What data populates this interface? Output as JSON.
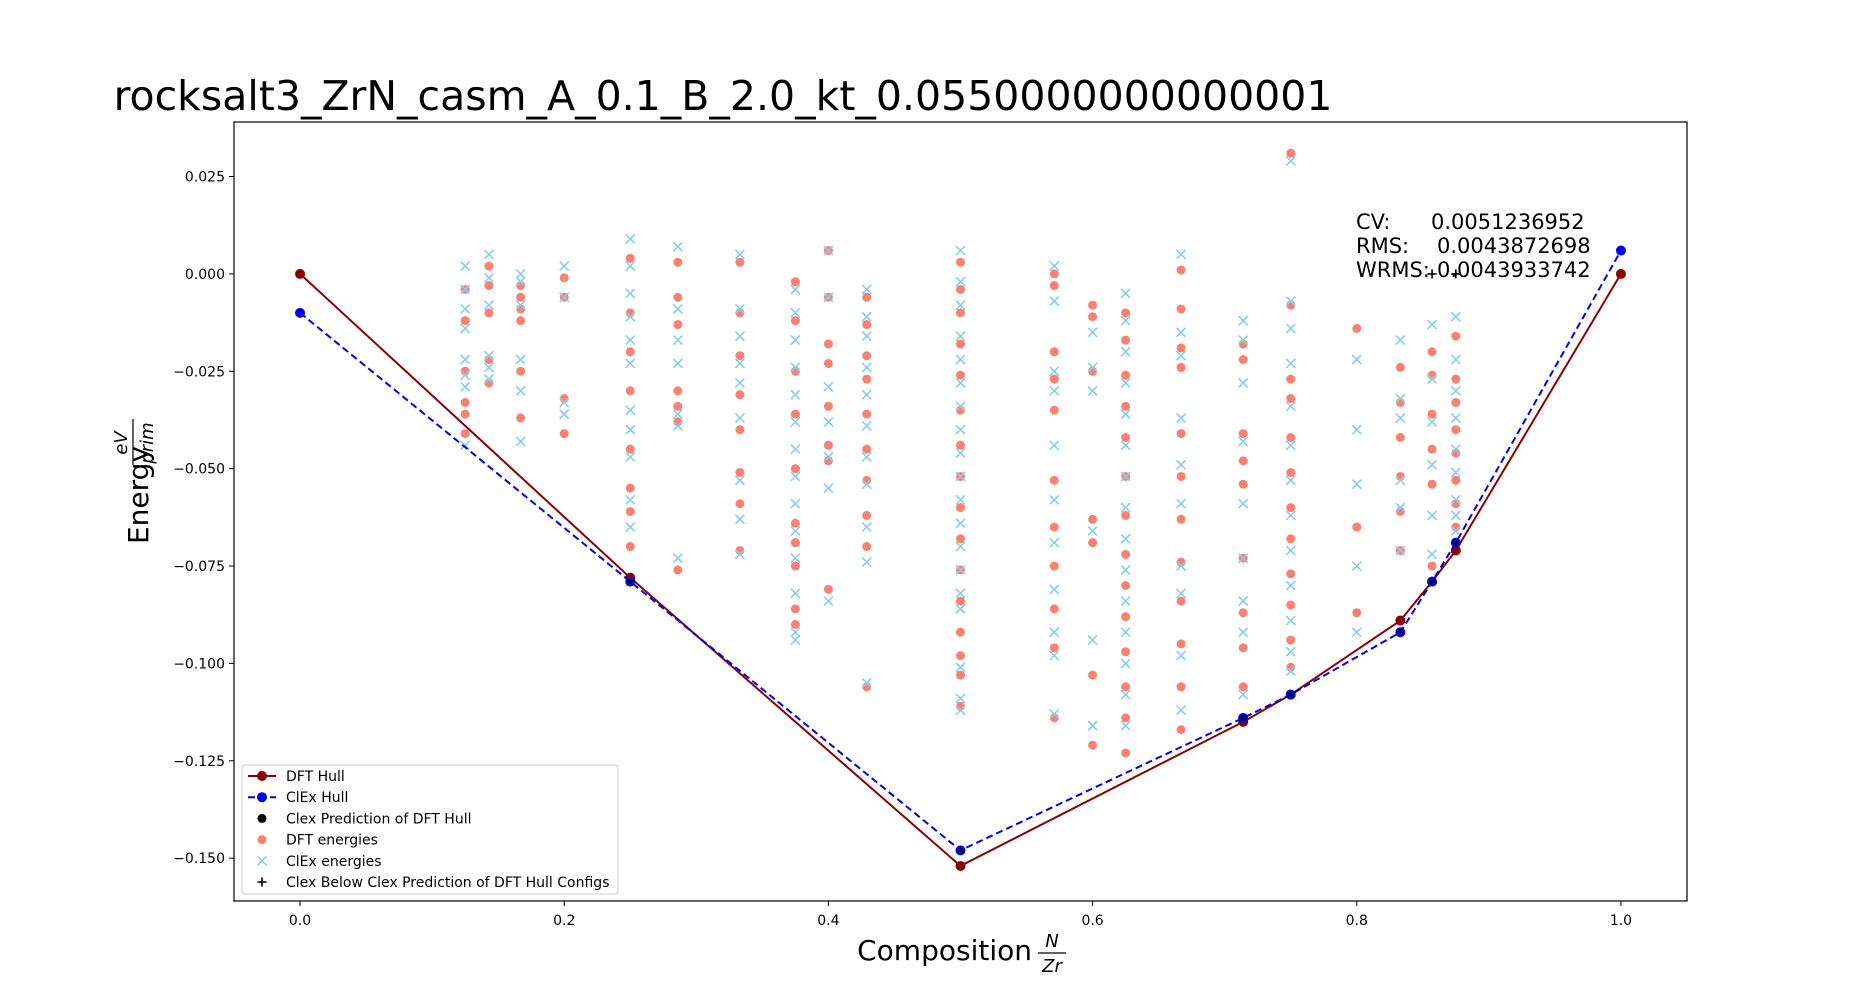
{
  "chart_data": {
    "type": "scatter",
    "title": "rocksalt3_ZrN_casm_A_0.1_B_2.0_kt_0.0550000000000001",
    "xlabel": {
      "main": "Composition",
      "num": "N",
      "den": "Zr"
    },
    "ylabel": {
      "main": "Energy",
      "num": "eV",
      "den": "prim"
    },
    "xlim": [
      -0.05,
      1.05
    ],
    "ylim": [
      -0.161,
      0.039
    ],
    "xticks": [
      0.0,
      0.2,
      0.4,
      0.6,
      0.8,
      1.0
    ],
    "xtick_labels": [
      "0.0",
      "0.2",
      "0.4",
      "0.6",
      "0.8",
      "1.0"
    ],
    "yticks": [
      -0.15,
      -0.125,
      -0.1,
      -0.075,
      -0.05,
      -0.025,
      0.0,
      0.025
    ],
    "ytick_labels": [
      "−0.150",
      "−0.125",
      "−0.100",
      "−0.075",
      "−0.050",
      "−0.025",
      "0.000",
      "0.025"
    ],
    "grid": false,
    "legend_position": "lower-left",
    "stats": {
      "cv_label": "CV:",
      "cv_value": "0.0051236952",
      "rms_label": "RMS:",
      "rms_value": "0.0043872698",
      "wrms_label": "WRMS:",
      "wrms_value": "0.0043933742"
    },
    "dft_hull": {
      "name": "DFT Hull",
      "color": "#8b0000",
      "x": [
        0.0,
        0.25,
        0.5,
        0.714,
        0.75,
        0.833,
        0.857,
        0.875,
        1.0
      ],
      "y": [
        0.0,
        -0.078,
        -0.152,
        -0.115,
        -0.108,
        -0.089,
        -0.079,
        -0.071,
        0.0
      ]
    },
    "clex_hull": {
      "name": "ClEx Hull",
      "color": "#0000ee",
      "x": [
        0.0,
        0.25,
        0.5,
        0.714,
        0.75,
        0.833,
        0.857,
        0.875,
        1.0
      ],
      "y": [
        -0.01,
        -0.079,
        -0.148,
        -0.114,
        -0.108,
        -0.092,
        -0.079,
        -0.069,
        0.006
      ]
    },
    "clex_prediction": {
      "name": "Clex Prediction of DFT Hull",
      "color": "#000000",
      "x": [
        0.25,
        0.5,
        0.714,
        0.75,
        0.833,
        0.857,
        0.875
      ],
      "y": [
        -0.079,
        -0.148,
        -0.114,
        -0.108,
        -0.092,
        -0.079,
        -0.069
      ]
    },
    "dft_energies": {
      "name": "DFT energies",
      "color": "#fa8072",
      "columns": [
        {
          "x": 0.125,
          "y": [
            -0.004,
            -0.012,
            -0.025,
            -0.033,
            -0.036,
            -0.041
          ]
        },
        {
          "x": 0.143,
          "y": [
            0.002,
            -0.003,
            -0.01,
            -0.022,
            -0.028
          ]
        },
        {
          "x": 0.167,
          "y": [
            -0.003,
            -0.006,
            -0.009,
            -0.012,
            -0.025,
            -0.037
          ]
        },
        {
          "x": 0.2,
          "y": [
            -0.001,
            -0.006,
            -0.032,
            -0.041
          ]
        },
        {
          "x": 0.25,
          "y": [
            0.004,
            -0.01,
            -0.02,
            -0.03,
            -0.045,
            -0.055,
            -0.061,
            -0.07
          ]
        },
        {
          "x": 0.286,
          "y": [
            0.003,
            -0.006,
            -0.013,
            -0.03,
            -0.034,
            -0.038,
            -0.076
          ]
        },
        {
          "x": 0.333,
          "y": [
            0.003,
            -0.01,
            -0.021,
            -0.031,
            -0.04,
            -0.051,
            -0.059,
            -0.071
          ]
        },
        {
          "x": 0.375,
          "y": [
            -0.002,
            -0.012,
            -0.025,
            -0.036,
            -0.05,
            -0.064,
            -0.069,
            -0.075,
            -0.086,
            -0.09
          ]
        },
        {
          "x": 0.4,
          "y": [
            0.006,
            -0.006,
            -0.018,
            -0.023,
            -0.034,
            -0.044,
            -0.048,
            -0.081
          ]
        },
        {
          "x": 0.429,
          "y": [
            -0.006,
            -0.013,
            -0.021,
            -0.027,
            -0.036,
            -0.045,
            -0.053,
            -0.062,
            -0.07,
            -0.106
          ]
        },
        {
          "x": 0.5,
          "y": [
            0.003,
            -0.004,
            -0.01,
            -0.018,
            -0.026,
            -0.035,
            -0.044,
            -0.052,
            -0.06,
            -0.068,
            -0.076,
            -0.084,
            -0.092,
            -0.098,
            -0.103,
            -0.111
          ]
        },
        {
          "x": 0.571,
          "y": [
            0.0,
            -0.003,
            -0.02,
            -0.027,
            -0.035,
            -0.053,
            -0.065,
            -0.075,
            -0.086,
            -0.096,
            -0.114
          ]
        },
        {
          "x": 0.6,
          "y": [
            -0.008,
            -0.011,
            -0.025,
            -0.063,
            -0.069,
            -0.103,
            -0.121
          ]
        },
        {
          "x": 0.625,
          "y": [
            -0.01,
            -0.017,
            -0.026,
            -0.034,
            -0.042,
            -0.052,
            -0.062,
            -0.072,
            -0.08,
            -0.088,
            -0.097,
            -0.106,
            -0.114,
            -0.123
          ]
        },
        {
          "x": 0.667,
          "y": [
            0.001,
            -0.009,
            -0.019,
            -0.024,
            -0.041,
            -0.052,
            -0.063,
            -0.074,
            -0.084,
            -0.095,
            -0.106,
            -0.117
          ]
        },
        {
          "x": 0.714,
          "y": [
            -0.018,
            -0.022,
            -0.041,
            -0.048,
            -0.054,
            -0.073,
            -0.087,
            -0.096,
            -0.106
          ]
        },
        {
          "x": 0.75,
          "y": [
            0.031,
            -0.008,
            -0.027,
            -0.032,
            -0.042,
            -0.051,
            -0.06,
            -0.068,
            -0.077,
            -0.085,
            -0.094,
            -0.101
          ]
        },
        {
          "x": 0.8,
          "y": [
            -0.014,
            -0.065,
            -0.087
          ]
        },
        {
          "x": 0.833,
          "y": [
            -0.024,
            -0.033,
            -0.042,
            -0.052,
            -0.061,
            -0.071
          ]
        },
        {
          "x": 0.857,
          "y": [
            -0.02,
            -0.026,
            -0.036,
            -0.045,
            -0.054,
            -0.075
          ]
        },
        {
          "x": 0.875,
          "y": [
            -0.016,
            -0.027,
            -0.033,
            -0.04,
            -0.046,
            -0.053,
            -0.059,
            -0.065
          ]
        }
      ]
    },
    "clex_energies": {
      "name": "ClEx energies",
      "color": "#87ceeb",
      "columns": [
        {
          "x": 0.125,
          "y": [
            0.002,
            -0.004,
            -0.009,
            -0.014,
            -0.022,
            -0.026,
            -0.029,
            -0.044
          ]
        },
        {
          "x": 0.143,
          "y": [
            0.005,
            -0.001,
            -0.008,
            -0.021,
            -0.024,
            -0.027
          ]
        },
        {
          "x": 0.167,
          "y": [
            0.0,
            -0.002,
            -0.008,
            -0.022,
            -0.03,
            -0.043
          ]
        },
        {
          "x": 0.2,
          "y": [
            0.002,
            -0.006,
            -0.033,
            -0.036
          ]
        },
        {
          "x": 0.25,
          "y": [
            0.009,
            0.002,
            -0.005,
            -0.011,
            -0.017,
            -0.023,
            -0.035,
            -0.04,
            -0.047,
            -0.058,
            -0.065,
            -0.079
          ]
        },
        {
          "x": 0.286,
          "y": [
            0.007,
            -0.009,
            -0.017,
            -0.023,
            -0.036,
            -0.039,
            -0.073
          ]
        },
        {
          "x": 0.333,
          "y": [
            0.005,
            -0.009,
            -0.016,
            -0.023,
            -0.028,
            -0.037,
            -0.053,
            -0.063,
            -0.072
          ]
        },
        {
          "x": 0.375,
          "y": [
            -0.004,
            -0.01,
            -0.017,
            -0.024,
            -0.031,
            -0.038,
            -0.045,
            -0.052,
            -0.059,
            -0.066,
            -0.073,
            -0.082,
            -0.092,
            -0.094
          ]
        },
        {
          "x": 0.4,
          "y": [
            0.006,
            -0.006,
            -0.029,
            -0.038,
            -0.047,
            -0.055,
            -0.084
          ]
        },
        {
          "x": 0.429,
          "y": [
            -0.004,
            -0.011,
            -0.016,
            -0.024,
            -0.031,
            -0.039,
            -0.047,
            -0.054,
            -0.065,
            -0.074,
            -0.105
          ]
        },
        {
          "x": 0.5,
          "y": [
            0.006,
            -0.002,
            -0.008,
            -0.016,
            -0.022,
            -0.028,
            -0.034,
            -0.04,
            -0.046,
            -0.052,
            -0.058,
            -0.064,
            -0.07,
            -0.076,
            -0.082,
            -0.086,
            -0.101,
            -0.109,
            -0.112
          ]
        },
        {
          "x": 0.571,
          "y": [
            0.002,
            -0.007,
            -0.025,
            -0.03,
            -0.044,
            -0.058,
            -0.069,
            -0.081,
            -0.092,
            -0.098,
            -0.113
          ]
        },
        {
          "x": 0.6,
          "y": [
            -0.015,
            -0.024,
            -0.03,
            -0.066,
            -0.094,
            -0.116
          ]
        },
        {
          "x": 0.625,
          "y": [
            -0.005,
            -0.012,
            -0.02,
            -0.028,
            -0.036,
            -0.044,
            -0.052,
            -0.06,
            -0.068,
            -0.076,
            -0.084,
            -0.092,
            -0.1,
            -0.108,
            -0.116
          ]
        },
        {
          "x": 0.667,
          "y": [
            0.005,
            -0.015,
            -0.021,
            -0.037,
            -0.049,
            -0.059,
            -0.075,
            -0.082,
            -0.098,
            -0.112
          ]
        },
        {
          "x": 0.714,
          "y": [
            -0.012,
            -0.017,
            -0.028,
            -0.043,
            -0.059,
            -0.073,
            -0.084,
            -0.092,
            -0.108
          ]
        },
        {
          "x": 0.75,
          "y": [
            0.029,
            -0.007,
            -0.014,
            -0.023,
            -0.034,
            -0.044,
            -0.053,
            -0.062,
            -0.071,
            -0.08,
            -0.089,
            -0.097,
            -0.102
          ]
        },
        {
          "x": 0.8,
          "y": [
            -0.022,
            -0.04,
            -0.054,
            -0.075,
            -0.092
          ]
        },
        {
          "x": 0.833,
          "y": [
            -0.017,
            -0.032,
            -0.037,
            -0.053,
            -0.06,
            -0.071
          ]
        },
        {
          "x": 0.857,
          "y": [
            -0.013,
            -0.027,
            -0.038,
            -0.049,
            -0.062,
            -0.072
          ]
        },
        {
          "x": 0.875,
          "y": [
            -0.011,
            -0.022,
            -0.03,
            -0.037,
            -0.045,
            -0.051,
            -0.058,
            -0.062,
            -0.066
          ]
        }
      ]
    },
    "clex_below": {
      "name": "Clex Below Clex Prediction of DFT Hull Configs",
      "color": "#000000",
      "x": [
        0.857,
        0.875
      ],
      "y": [
        0.0,
        0.0
      ]
    },
    "legend": [
      {
        "key": "dft_hull",
        "label": "DFT Hull"
      },
      {
        "key": "clex_hull",
        "label": "ClEx Hull"
      },
      {
        "key": "clex_prediction",
        "label": "Clex Prediction of DFT Hull"
      },
      {
        "key": "dft_energies",
        "label": "DFT energies"
      },
      {
        "key": "clex_energies",
        "label": "ClEx energies"
      },
      {
        "key": "clex_below",
        "label": "Clex Below Clex Prediction of DFT Hull Configs"
      }
    ]
  }
}
